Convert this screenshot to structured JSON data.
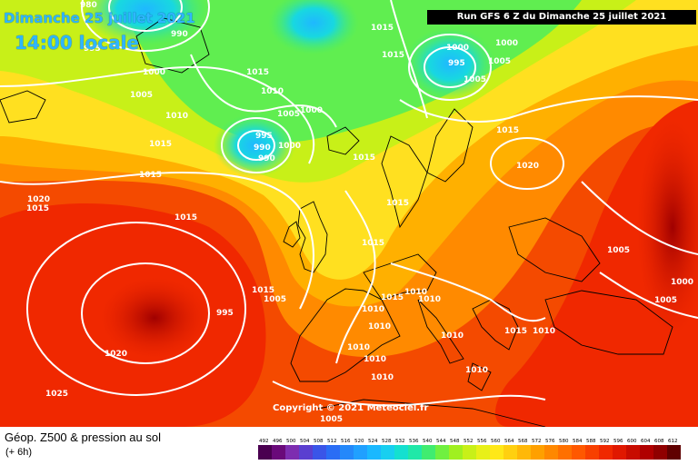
{
  "header": {
    "date": "Dimanche 25 juillet 2021",
    "time": "14:00 locale",
    "run": "Run GFS 6 Z du Dimanche 25 juillet 2021"
  },
  "copyright": "Copyright © 2021 Meteociel.fr",
  "legend": {
    "title": "Géop. Z500 & pression au sol",
    "subtitle": "(+ 6h)",
    "ticks": [
      "492",
      "496",
      "500",
      "504",
      "508",
      "512",
      "516",
      "520",
      "524",
      "528",
      "532",
      "536",
      "540",
      "544",
      "548",
      "552",
      "556",
      "560",
      "564",
      "568",
      "572",
      "576",
      "580",
      "584",
      "588",
      "592",
      "596",
      "600",
      "604",
      "608",
      "612"
    ],
    "colors": [
      "#4a0050",
      "#6a0a7a",
      "#7d2db0",
      "#5a3fd0",
      "#3a55e8",
      "#2a6df5",
      "#2488fa",
      "#20a0ff",
      "#1ab8ff",
      "#18cff0",
      "#14e0d0",
      "#20e8a8",
      "#40ec70",
      "#70f040",
      "#a0f020",
      "#c8f018",
      "#e8f018",
      "#ffe818",
      "#ffd010",
      "#ffb808",
      "#ffa000",
      "#ff8800",
      "#ff7000",
      "#ff5800",
      "#f84000",
      "#f02800",
      "#e01800",
      "#c80c00",
      "#b00000",
      "#900000",
      "#600000"
    ]
  },
  "isobars": [
    {
      "v": "980"
    },
    {
      "v": "990"
    },
    {
      "v": "995"
    },
    {
      "v": "1000"
    },
    {
      "v": "1005"
    },
    {
      "v": "1010"
    },
    {
      "v": "1015"
    },
    {
      "v": "1015"
    },
    {
      "v": "1015"
    },
    {
      "v": "1010"
    },
    {
      "v": "1005"
    },
    {
      "v": "1000"
    },
    {
      "v": "995"
    },
    {
      "v": "990"
    },
    {
      "v": "990"
    },
    {
      "v": "1000"
    },
    {
      "v": "1015"
    },
    {
      "v": "1015"
    },
    {
      "v": "1000"
    },
    {
      "v": "995"
    },
    {
      "v": "1000"
    },
    {
      "v": "1005"
    },
    {
      "v": "1005"
    },
    {
      "v": "1015"
    },
    {
      "v": "1020"
    },
    {
      "v": "1015"
    },
    {
      "v": "1015"
    },
    {
      "v": "1015"
    },
    {
      "v": "1015"
    },
    {
      "v": "1005"
    },
    {
      "v": "1015"
    },
    {
      "v": "1015"
    },
    {
      "v": "1010"
    },
    {
      "v": "1010"
    },
    {
      "v": "1010"
    },
    {
      "v": "1010"
    },
    {
      "v": "1010"
    },
    {
      "v": "1010"
    },
    {
      "v": "1010"
    },
    {
      "v": "1015"
    },
    {
      "v": "1005"
    },
    {
      "v": "1005"
    },
    {
      "v": "1000"
    },
    {
      "v": "995"
    },
    {
      "v": "1020"
    },
    {
      "v": "1025"
    },
    {
      "v": "1020"
    },
    {
      "v": "1015"
    },
    {
      "v": "1005"
    },
    {
      "v": "1010"
    },
    {
      "v": "1010"
    },
    {
      "v": "1010"
    }
  ]
}
